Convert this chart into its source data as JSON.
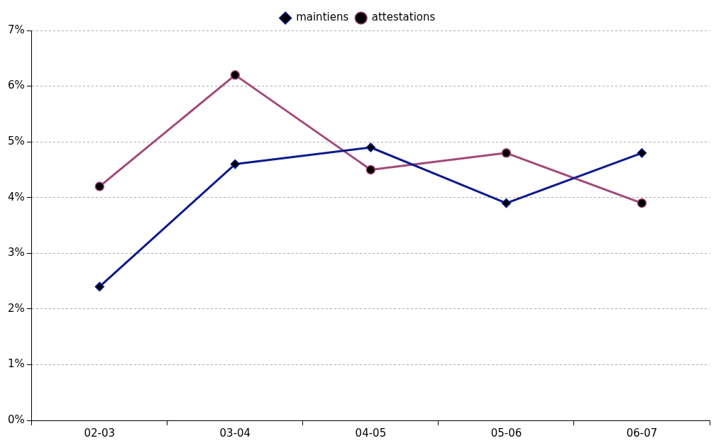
{
  "chart_data": {
    "type": "line",
    "categories": [
      "02-03",
      "03-04",
      "04-05",
      "05-06",
      "06-07"
    ],
    "series": [
      {
        "name": "maintiens",
        "color": "#0c1a8a",
        "marker": "diamond",
        "values": [
          2.4,
          4.6,
          4.9,
          3.9,
          4.8
        ]
      },
      {
        "name": "attestations",
        "color": "#a3497a",
        "marker": "circle",
        "values": [
          4.2,
          6.2,
          4.5,
          4.8,
          3.9
        ]
      }
    ],
    "ylim": [
      0,
      7
    ],
    "yticks": [
      {
        "value": 0,
        "label": "0%"
      },
      {
        "value": 1,
        "label": "1%"
      },
      {
        "value": 2,
        "label": "2%"
      },
      {
        "value": 3,
        "label": "3%"
      },
      {
        "value": 4,
        "label": "4%"
      },
      {
        "value": 5,
        "label": "5%"
      },
      {
        "value": 6,
        "label": "6%"
      },
      {
        "value": 7,
        "label": "7%"
      }
    ],
    "grid": "y",
    "legend": "top",
    "line_style": "solid"
  }
}
